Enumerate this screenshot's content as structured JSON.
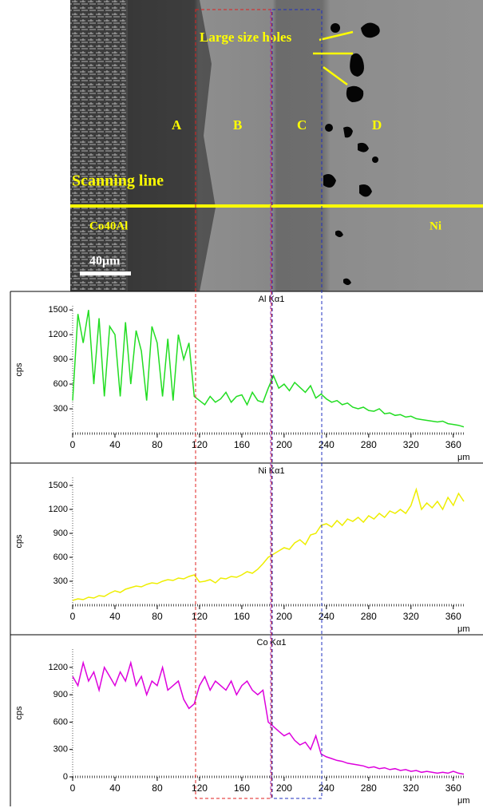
{
  "micrograph": {
    "labels": {
      "holes": "Large size holes",
      "a": "A",
      "b": "B",
      "c": "C",
      "d": "D",
      "scan": "Scanning line",
      "left": "Co40Al",
      "right": "Ni",
      "scale": "40μm"
    }
  },
  "chart_data": [
    {
      "type": "line",
      "title": "Al Kα1",
      "ylabel": "cps",
      "xlabel": "μm",
      "xlim": [
        0,
        370
      ],
      "ylim": [
        0,
        1550
      ],
      "xticks": [
        0,
        40,
        80,
        120,
        160,
        200,
        240,
        280,
        320,
        360
      ],
      "yticks": [
        300,
        600,
        900,
        1200,
        1500
      ],
      "grid": false,
      "x": [
        0,
        5,
        10,
        15,
        20,
        25,
        30,
        35,
        40,
        45,
        50,
        55,
        60,
        65,
        70,
        75,
        80,
        85,
        90,
        95,
        100,
        105,
        110,
        115,
        120,
        125,
        130,
        135,
        140,
        145,
        150,
        155,
        160,
        165,
        170,
        175,
        180,
        185,
        190,
        195,
        200,
        205,
        210,
        215,
        220,
        225,
        230,
        235,
        240,
        245,
        250,
        255,
        260,
        265,
        270,
        275,
        280,
        285,
        290,
        295,
        300,
        305,
        310,
        315,
        320,
        325,
        330,
        335,
        340,
        345,
        350,
        355,
        360,
        365,
        370
      ],
      "series": [
        {
          "name": "Al Kα1",
          "color": "#22dd22",
          "values": [
            400,
            1450,
            1100,
            1500,
            600,
            1400,
            450,
            1300,
            1200,
            450,
            1350,
            600,
            1250,
            1000,
            400,
            1300,
            1100,
            450,
            1150,
            400,
            1200,
            900,
            1100,
            450,
            400,
            350,
            450,
            380,
            420,
            500,
            380,
            450,
            470,
            350,
            500,
            400,
            380,
            550,
            700,
            550,
            600,
            520,
            620,
            560,
            500,
            580,
            430,
            480,
            420,
            380,
            400,
            350,
            370,
            320,
            300,
            320,
            280,
            270,
            300,
            240,
            250,
            220,
            230,
            200,
            210,
            180,
            170,
            160,
            150,
            140,
            150,
            120,
            110,
            100,
            80
          ]
        }
      ]
    },
    {
      "type": "line",
      "title": "Ni Kα1",
      "ylabel": "cps",
      "xlabel": "μm",
      "xlim": [
        0,
        370
      ],
      "ylim": [
        0,
        1600
      ],
      "xticks": [
        0,
        40,
        80,
        120,
        160,
        200,
        240,
        280,
        320,
        360
      ],
      "yticks": [
        300,
        600,
        900,
        1200,
        1500
      ],
      "grid": false,
      "x": [
        0,
        5,
        10,
        15,
        20,
        25,
        30,
        35,
        40,
        45,
        50,
        55,
        60,
        65,
        70,
        75,
        80,
        85,
        90,
        95,
        100,
        105,
        110,
        115,
        120,
        125,
        130,
        135,
        140,
        145,
        150,
        155,
        160,
        165,
        170,
        175,
        180,
        185,
        190,
        195,
        200,
        205,
        210,
        215,
        220,
        225,
        230,
        235,
        240,
        245,
        250,
        255,
        260,
        265,
        270,
        275,
        280,
        285,
        290,
        295,
        300,
        305,
        310,
        315,
        320,
        325,
        330,
        335,
        340,
        345,
        350,
        355,
        360,
        365,
        370
      ],
      "series": [
        {
          "name": "Ni Kα1",
          "color": "#eeee00",
          "values": [
            60,
            80,
            70,
            100,
            90,
            120,
            110,
            150,
            180,
            160,
            200,
            220,
            240,
            230,
            260,
            280,
            270,
            300,
            320,
            310,
            340,
            330,
            360,
            380,
            290,
            300,
            320,
            280,
            340,
            330,
            360,
            350,
            380,
            420,
            400,
            450,
            520,
            600,
            640,
            680,
            720,
            700,
            780,
            820,
            760,
            880,
            900,
            1000,
            1020,
            980,
            1060,
            1000,
            1080,
            1050,
            1100,
            1040,
            1120,
            1080,
            1150,
            1100,
            1180,
            1150,
            1200,
            1150,
            1250,
            1450,
            1200,
            1280,
            1220,
            1300,
            1200,
            1350,
            1250,
            1400,
            1300
          ]
        }
      ]
    },
    {
      "type": "line",
      "title": "Co Kα1",
      "ylabel": "cps",
      "xlabel": "μm",
      "xlim": [
        0,
        370
      ],
      "ylim": [
        0,
        1400
      ],
      "xticks": [
        0,
        40,
        80,
        120,
        160,
        200,
        240,
        280,
        320,
        360
      ],
      "yticks": [
        0,
        300,
        600,
        900,
        1200
      ],
      "grid": false,
      "x": [
        0,
        5,
        10,
        15,
        20,
        25,
        30,
        35,
        40,
        45,
        50,
        55,
        60,
        65,
        70,
        75,
        80,
        85,
        90,
        95,
        100,
        105,
        110,
        115,
        120,
        125,
        130,
        135,
        140,
        145,
        150,
        155,
        160,
        165,
        170,
        175,
        180,
        185,
        190,
        195,
        200,
        205,
        210,
        215,
        220,
        225,
        230,
        235,
        240,
        245,
        250,
        255,
        260,
        265,
        270,
        275,
        280,
        285,
        290,
        295,
        300,
        305,
        310,
        315,
        320,
        325,
        330,
        335,
        340,
        345,
        350,
        355,
        360,
        365,
        370
      ],
      "series": [
        {
          "name": "Co Kα1",
          "color": "#dd00dd",
          "values": [
            1100,
            1000,
            1250,
            1050,
            1150,
            950,
            1200,
            1100,
            1000,
            1150,
            1050,
            1250,
            1000,
            1100,
            900,
            1050,
            1000,
            1200,
            950,
            1000,
            1050,
            850,
            750,
            800,
            1000,
            1100,
            950,
            1050,
            1000,
            950,
            1050,
            900,
            1000,
            1050,
            950,
            900,
            950,
            600,
            550,
            500,
            450,
            480,
            400,
            350,
            380,
            300,
            450,
            250,
            220,
            200,
            180,
            170,
            150,
            140,
            130,
            120,
            100,
            110,
            90,
            100,
            80,
            90,
            70,
            80,
            60,
            70,
            50,
            60,
            50,
            40,
            50,
            40,
            60,
            40,
            30
          ]
        }
      ]
    }
  ]
}
